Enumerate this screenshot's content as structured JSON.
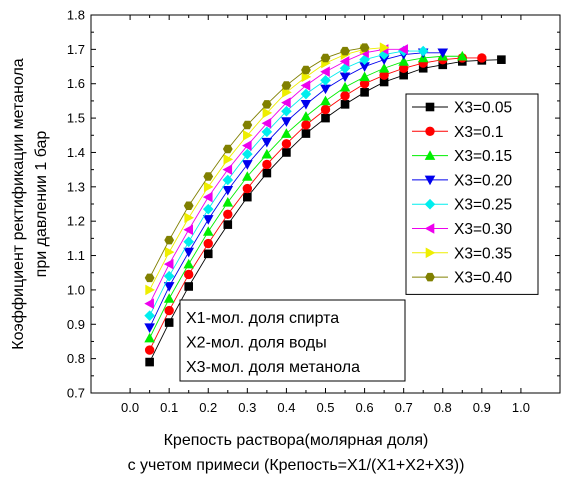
{
  "chart_data": {
    "type": "line",
    "ylabel_lines": [
      "Коэффициент ректификации метанола",
      "при давлении 1 бар"
    ],
    "xlabel_lines": [
      "Крепость раствора(молярная доля)",
      "с учетом примеси (Крепость=X1/(X1+X2+X3))"
    ],
    "xlim": [
      -0.1,
      1.1
    ],
    "ylim": [
      0.7,
      1.8
    ],
    "x_ticks": [
      "0.0",
      "0.1",
      "0.2",
      "0.3",
      "0.4",
      "0.5",
      "0.6",
      "0.7",
      "0.8",
      "0.9",
      "1.0"
    ],
    "y_ticks": [
      "0.7",
      "0.8",
      "0.9",
      "1.0",
      "1.1",
      "1.2",
      "1.3",
      "1.4",
      "1.5",
      "1.6",
      "1.7",
      "1.8"
    ],
    "grid": false,
    "legend_position": "right",
    "series": [
      {
        "name": "X3=0.05",
        "color": "#000000",
        "marker": "square",
        "x": [
          0.05,
          0.1,
          0.15,
          0.2,
          0.25,
          0.3,
          0.35,
          0.4,
          0.45,
          0.5,
          0.55,
          0.6,
          0.65,
          0.7,
          0.75,
          0.8,
          0.85,
          0.9,
          0.95
        ],
        "y": [
          0.79,
          0.905,
          1.01,
          1.105,
          1.19,
          1.27,
          1.34,
          1.4,
          1.455,
          1.5,
          1.54,
          1.575,
          1.605,
          1.625,
          1.645,
          1.655,
          1.665,
          1.668,
          1.67
        ]
      },
      {
        "name": "X3=0.1",
        "color": "#ff0000",
        "marker": "circle",
        "x": [
          0.05,
          0.1,
          0.15,
          0.2,
          0.25,
          0.3,
          0.35,
          0.4,
          0.45,
          0.5,
          0.55,
          0.6,
          0.65,
          0.7,
          0.75,
          0.8,
          0.85,
          0.9
        ],
        "y": [
          0.825,
          0.94,
          1.045,
          1.135,
          1.22,
          1.295,
          1.365,
          1.425,
          1.48,
          1.525,
          1.565,
          1.6,
          1.625,
          1.645,
          1.66,
          1.67,
          1.675,
          1.675
        ]
      },
      {
        "name": "X3=0.15",
        "color": "#00ee00",
        "marker": "triangle-up",
        "x": [
          0.05,
          0.1,
          0.15,
          0.2,
          0.25,
          0.3,
          0.35,
          0.4,
          0.45,
          0.5,
          0.55,
          0.6,
          0.65,
          0.7,
          0.75,
          0.8,
          0.85
        ],
        "y": [
          0.86,
          0.975,
          1.075,
          1.17,
          1.255,
          1.33,
          1.395,
          1.455,
          1.505,
          1.55,
          1.59,
          1.62,
          1.645,
          1.665,
          1.675,
          1.68,
          1.68
        ]
      },
      {
        "name": "X3=0.20",
        "color": "#0000ee",
        "marker": "triangle-down",
        "x": [
          0.05,
          0.1,
          0.15,
          0.2,
          0.25,
          0.3,
          0.35,
          0.4,
          0.45,
          0.5,
          0.55,
          0.6,
          0.65,
          0.7,
          0.75,
          0.8
        ],
        "y": [
          0.89,
          1.01,
          1.11,
          1.205,
          1.29,
          1.365,
          1.43,
          1.49,
          1.54,
          1.585,
          1.62,
          1.65,
          1.67,
          1.685,
          1.69,
          1.69
        ]
      },
      {
        "name": "X3=0.25",
        "color": "#00eeee",
        "marker": "diamond",
        "x": [
          0.05,
          0.1,
          0.15,
          0.2,
          0.25,
          0.3,
          0.35,
          0.4,
          0.45,
          0.5,
          0.55,
          0.6,
          0.65,
          0.7,
          0.75
        ],
        "y": [
          0.925,
          1.04,
          1.14,
          1.235,
          1.32,
          1.395,
          1.46,
          1.52,
          1.57,
          1.61,
          1.645,
          1.67,
          1.685,
          1.695,
          1.695
        ]
      },
      {
        "name": "X3=0.30",
        "color": "#ee00ee",
        "marker": "triangle-left",
        "x": [
          0.05,
          0.1,
          0.15,
          0.2,
          0.25,
          0.3,
          0.35,
          0.4,
          0.45,
          0.5,
          0.55,
          0.6,
          0.65,
          0.7
        ],
        "y": [
          0.96,
          1.075,
          1.175,
          1.27,
          1.35,
          1.42,
          1.485,
          1.545,
          1.595,
          1.635,
          1.665,
          1.69,
          1.7,
          1.7
        ]
      },
      {
        "name": "X3=0.35",
        "color": "#eeee00",
        "marker": "triangle-right",
        "x": [
          0.05,
          0.1,
          0.15,
          0.2,
          0.25,
          0.3,
          0.35,
          0.4,
          0.45,
          0.5,
          0.55,
          0.6,
          0.65
        ],
        "y": [
          1.0,
          1.11,
          1.21,
          1.3,
          1.38,
          1.45,
          1.515,
          1.575,
          1.62,
          1.66,
          1.685,
          1.7,
          1.705
        ]
      },
      {
        "name": "X3=0.40",
        "color": "#808000",
        "marker": "hexagon",
        "x": [
          0.05,
          0.1,
          0.15,
          0.2,
          0.25,
          0.3,
          0.35,
          0.4,
          0.45,
          0.5,
          0.55,
          0.6
        ],
        "y": [
          1.035,
          1.145,
          1.245,
          1.33,
          1.41,
          1.48,
          1.54,
          1.595,
          1.64,
          1.675,
          1.695,
          1.705
        ]
      }
    ],
    "annotations": [
      "X1-мол. доля спирта",
      "X2-мол. доля воды",
      "X3-мол. доля метанола"
    ]
  }
}
